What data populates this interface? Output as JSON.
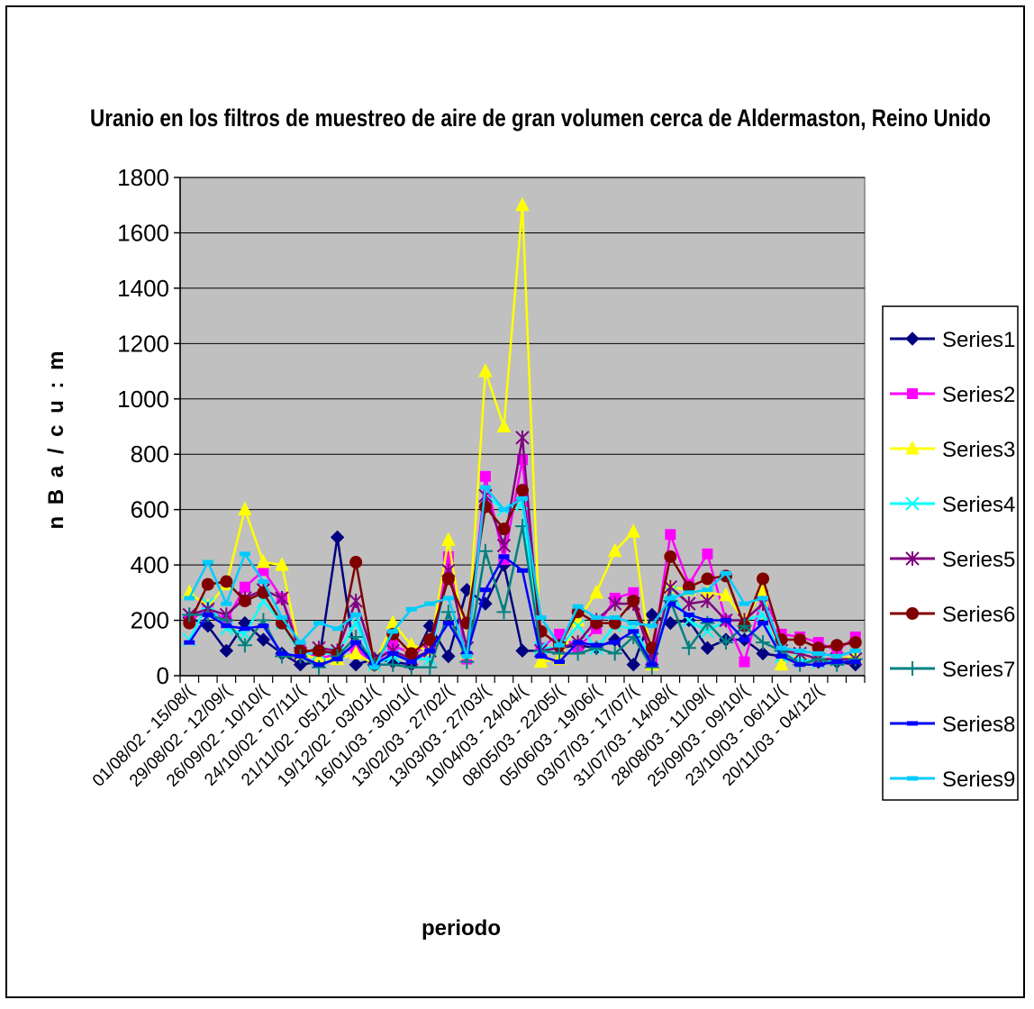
{
  "chart_data": {
    "type": "line",
    "title": "Uranio en los filtros de muestreo de aire de gran volumen cerca de Aldermaston, Reino Unido",
    "xlabel": "periodo",
    "ylabel": "n B a / c u : m",
    "ylim": [
      0,
      1800
    ],
    "yticks": [
      "0",
      "200",
      "400",
      "600",
      "800",
      "1000",
      "1200",
      "1400",
      "1600",
      "1800"
    ],
    "grid": "horizontal",
    "legend": "right",
    "plot_background": "#c0c0c0",
    "x_tick_labels": [
      "01/08/02 - 15/08/(",
      "29/08/02 - 12/09/(",
      "26/09/02 - 10/10/(",
      "24/10/02 - 07/11/(",
      "21/11/02 - 05/12/(",
      "19/12/02 - 03/01/(",
      "16/01/03 - 30/01/(",
      "13/02/03 - 27/02/(",
      "13/03/03 - 27/03/(",
      "10/04/03 - 24/04/(",
      "08/05/03 - 22/05/(",
      "05/06/03 - 19/06/(",
      "03/07/03 - 17/07/(",
      "31/07/03 - 14/08/(",
      "28/08/03 - 11/09/(",
      "25/09/03 - 09/10/(",
      "23/10/03 - 06/11/(",
      "20/11/03 - 04/12/("
    ],
    "n_points": 37,
    "series": [
      {
        "name": "Series1",
        "color": "#000080",
        "marker": "diamond",
        "values": [
          210,
          180,
          90,
          190,
          130,
          80,
          40,
          50,
          500,
          40,
          60,
          50,
          40,
          180,
          70,
          310,
          260,
          400,
          90,
          90,
          100,
          110,
          100,
          130,
          40,
          220,
          190,
          200,
          100,
          130,
          130,
          80,
          70,
          60,
          50,
          50,
          40
        ]
      },
      {
        "name": "Series2",
        "color": "#ff00ff",
        "marker": "square",
        "values": [
          200,
          240,
          200,
          320,
          380,
          280,
          100,
          60,
          80,
          100,
          40,
          110,
          80,
          110,
          430,
          60,
          720,
          420,
          780,
          100,
          150,
          100,
          170,
          280,
          300,
          60,
          510,
          330,
          440,
          200,
          50,
          290,
          150,
          140,
          120,
          90,
          140
        ]
      },
      {
        "name": "Series3",
        "color": "#ffff00",
        "marker": "triangle",
        "values": [
          300,
          250,
          330,
          600,
          410,
          400,
          80,
          60,
          60,
          80,
          40,
          190,
          110,
          90,
          490,
          80,
          1100,
          900,
          1700,
          50,
          60,
          200,
          300,
          450,
          520,
          40,
          320,
          310,
          300,
          290,
          200,
          310,
          40,
          80,
          60,
          60,
          70
        ]
      },
      {
        "name": "Series4",
        "color": "#00ffff",
        "marker": "x",
        "values": [
          130,
          260,
          170,
          150,
          270,
          190,
          80,
          80,
          80,
          190,
          40,
          70,
          60,
          60,
          380,
          100,
          650,
          600,
          620,
          100,
          100,
          180,
          100,
          180,
          170,
          60,
          300,
          200,
          160,
          200,
          200,
          220,
          70,
          60,
          50,
          60,
          60
        ]
      },
      {
        "name": "Series5",
        "color": "#800080",
        "marker": "star",
        "values": [
          220,
          240,
          220,
          280,
          310,
          280,
          80,
          100,
          90,
          270,
          60,
          90,
          60,
          90,
          380,
          100,
          650,
          470,
          860,
          90,
          100,
          120,
          200,
          260,
          260,
          60,
          320,
          260,
          270,
          200,
          200,
          260,
          90,
          80,
          60,
          60,
          60
        ]
      },
      {
        "name": "Series6",
        "color": "#800000",
        "marker": "circle",
        "values": [
          190,
          330,
          340,
          270,
          300,
          190,
          90,
          90,
          80,
          410,
          40,
          150,
          80,
          130,
          350,
          190,
          610,
          530,
          670,
          160,
          110,
          230,
          190,
          190,
          270,
          100,
          430,
          320,
          350,
          360,
          180,
          350,
          130,
          130,
          100,
          110,
          120
        ]
      },
      {
        "name": "Series7",
        "color": "#008080",
        "marker": "plus",
        "values": [
          220,
          220,
          200,
          110,
          200,
          70,
          70,
          30,
          70,
          140,
          40,
          40,
          30,
          30,
          230,
          50,
          450,
          230,
          540,
          90,
          80,
          80,
          100,
          80,
          140,
          30,
          270,
          100,
          190,
          120,
          180,
          120,
          90,
          40,
          60,
          40,
          60
        ]
      },
      {
        "name": "Series8",
        "color": "#0000ff",
        "marker": "dash",
        "values": [
          120,
          220,
          180,
          170,
          180,
          80,
          70,
          40,
          60,
          120,
          40,
          80,
          50,
          90,
          190,
          80,
          310,
          430,
          380,
          70,
          50,
          120,
          110,
          120,
          160,
          40,
          260,
          220,
          200,
          200,
          130,
          190,
          70,
          40,
          40,
          50,
          50
        ]
      },
      {
        "name": "Series9",
        "color": "#00ccff",
        "marker": "dash",
        "values": [
          280,
          410,
          260,
          440,
          340,
          210,
          120,
          190,
          170,
          220,
          30,
          160,
          240,
          260,
          280,
          70,
          680,
          600,
          640,
          210,
          110,
          250,
          210,
          210,
          190,
          180,
          280,
          300,
          310,
          370,
          260,
          280,
          100,
          90,
          80,
          70,
          90
        ]
      }
    ]
  }
}
